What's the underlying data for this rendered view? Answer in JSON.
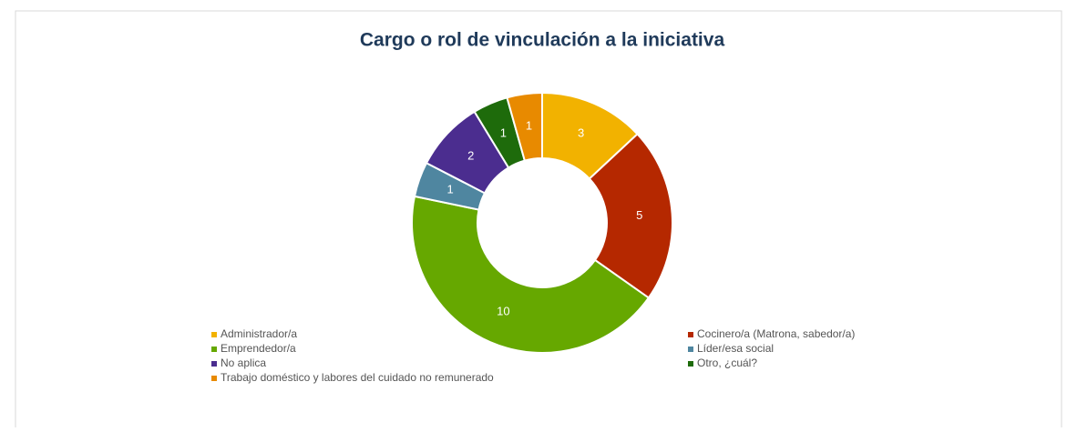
{
  "chart_data": {
    "type": "donut",
    "title": "Cargo o rol de vinculación a la iniciativa",
    "categories": [
      "Administrador/a",
      "Cocinero/a (Matrona, sabedor/a)",
      "Emprendedor/a",
      "Líder/esa social",
      "No aplica",
      "Otro, ¿cuál?",
      "Trabajo doméstico y labores del cuidado no remunerado"
    ],
    "values": [
      3,
      5,
      10,
      1,
      2,
      1,
      1
    ],
    "colors": [
      "#f2b200",
      "#b52800",
      "#66a800",
      "#4f86a0",
      "#4b2d8f",
      "#1e6b0b",
      "#e88a00"
    ],
    "legend": "bottom"
  }
}
